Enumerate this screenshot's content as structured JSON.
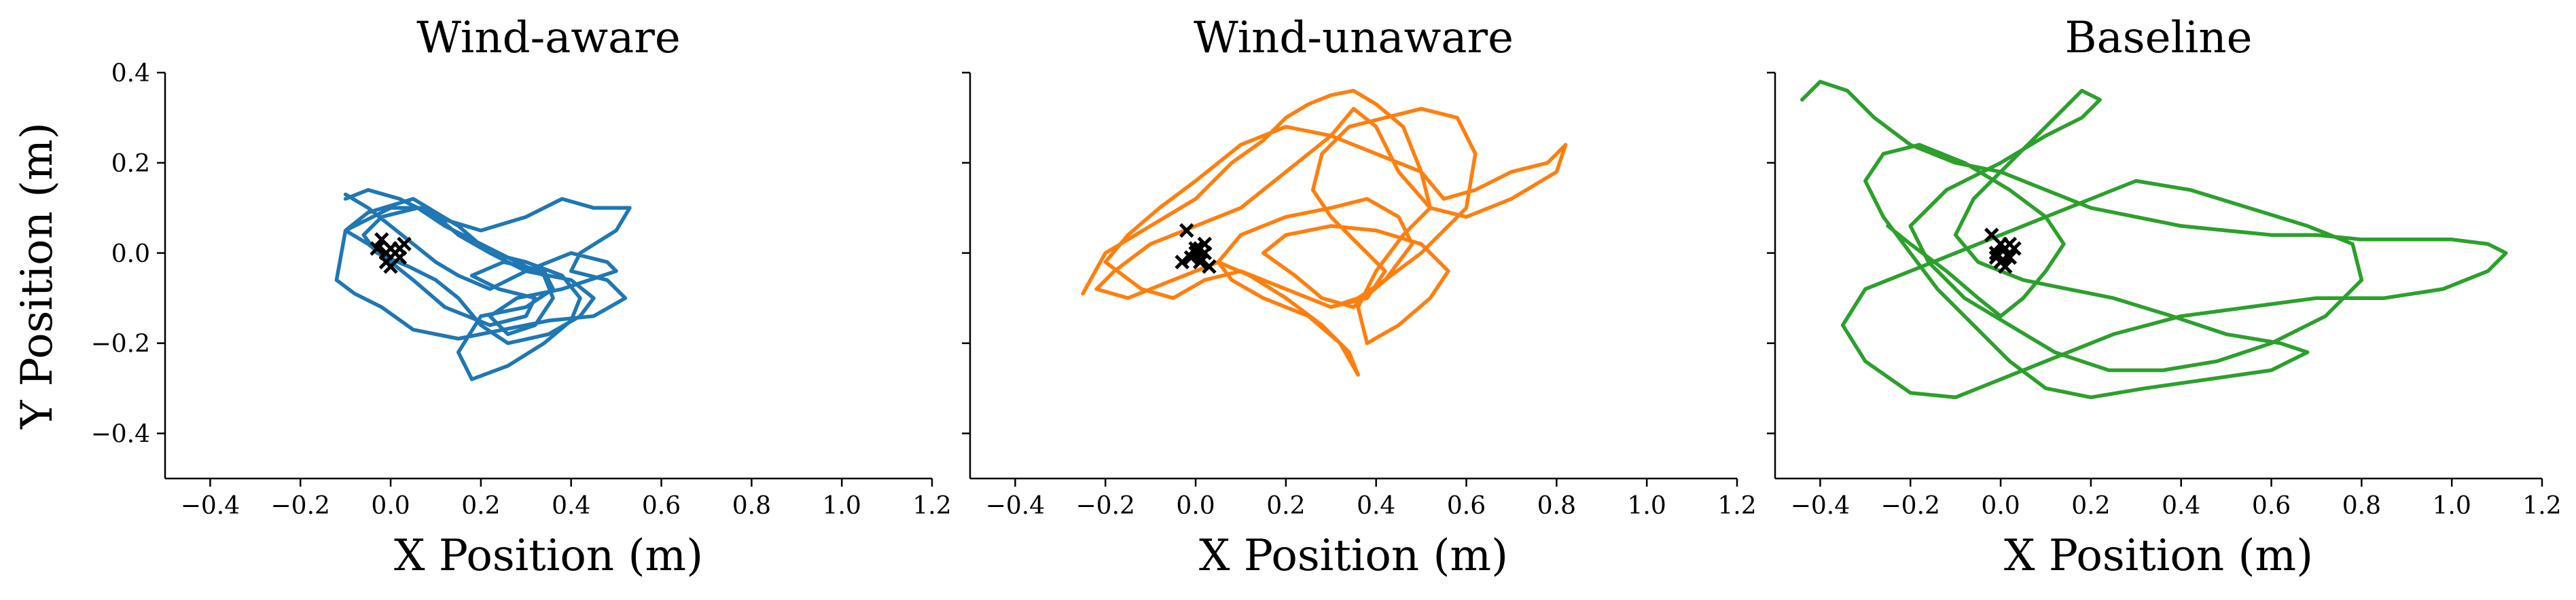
{
  "colors": {
    "wind_aware": "#1f77b4",
    "wind_unaware": "#ff7f0e",
    "baseline": "#2ca02c",
    "marker": "#000000"
  },
  "chart_data": [
    {
      "type": "line",
      "title": "Wind-aware",
      "xlabel": "X Position (m)",
      "ylabel": "Y Position (m)",
      "xlim": [
        -0.5,
        1.2
      ],
      "ylim": [
        -0.5,
        0.4
      ],
      "xticks": [
        -0.4,
        -0.2,
        0.0,
        0.2,
        0.4,
        0.6,
        0.8,
        1.0,
        1.2
      ],
      "xtick_labels": [
        "−0.4",
        "−0.2",
        "0.0",
        "0.2",
        "0.4",
        "0.6",
        "0.8",
        "1.0",
        "1.2"
      ],
      "yticks": [
        -0.4,
        -0.2,
        0.0,
        0.2,
        0.4
      ],
      "ytick_labels": [
        "−0.4",
        "−0.2",
        "0.0",
        "0.2",
        "0.4"
      ],
      "show_ytick_labels": true,
      "grid": false,
      "color": "#1f77b4",
      "series": [
        {
          "x": [
            -0.1,
            -0.05,
            0.02,
            0.1,
            0.2,
            0.3,
            0.38,
            0.45,
            0.53,
            0.5,
            0.42,
            0.4,
            0.48,
            0.52,
            0.45,
            0.35,
            0.25,
            0.15,
            0.05,
            -0.02,
            -0.08,
            -0.12,
            -0.1,
            0.0,
            0.08,
            0.15,
            0.22,
            0.3,
            0.38,
            0.42,
            0.4,
            0.34,
            0.26,
            0.18,
            0.15,
            0.2,
            0.3,
            0.36,
            0.34,
            0.25,
            0.18,
            0.24,
            0.32,
            0.3,
            0.22,
            0.12,
            0.05,
            0.0,
            -0.05,
            -0.1,
            -0.05,
            0.05,
            0.15,
            0.22,
            0.3,
            0.4,
            0.45,
            0.42,
            0.35,
            0.26,
            0.2,
            0.15,
            0.1,
            0.04,
            -0.03,
            -0.06,
            -0.02,
            0.06,
            0.12,
            0.2,
            0.28,
            0.34,
            0.36,
            0.32,
            0.26,
            0.22,
            0.28,
            0.38,
            0.44,
            0.5,
            0.48,
            0.4,
            0.3,
            0.22,
            0.15,
            0.1,
            0.05,
            0.0,
            -0.05,
            -0.1
          ],
          "y": [
            0.12,
            0.14,
            0.12,
            0.08,
            0.05,
            0.08,
            0.12,
            0.1,
            0.1,
            0.05,
            0.0,
            -0.04,
            -0.06,
            -0.1,
            -0.14,
            -0.15,
            -0.17,
            -0.19,
            -0.17,
            -0.12,
            -0.09,
            -0.06,
            0.05,
            0.1,
            0.1,
            0.04,
            0.0,
            -0.02,
            -0.05,
            -0.1,
            -0.15,
            -0.2,
            -0.25,
            -0.28,
            -0.22,
            -0.14,
            -0.12,
            -0.08,
            -0.04,
            -0.02,
            -0.05,
            -0.08,
            -0.1,
            -0.14,
            -0.16,
            -0.12,
            -0.06,
            -0.02,
            0.02,
            0.05,
            0.09,
            0.12,
            0.06,
            0.0,
            -0.04,
            -0.06,
            -0.1,
            -0.14,
            -0.18,
            -0.2,
            -0.16,
            -0.1,
            -0.06,
            -0.03,
            0.0,
            0.04,
            0.08,
            0.1,
            0.06,
            0.02,
            -0.02,
            -0.05,
            -0.1,
            -0.16,
            -0.18,
            -0.14,
            -0.1,
            -0.08,
            -0.06,
            -0.04,
            -0.02,
            0.0,
            -0.04,
            -0.08,
            -0.05,
            -0.02,
            0.02,
            0.06,
            0.1,
            0.13
          ]
        }
      ],
      "markers": {
        "x": [
          -0.02,
          0.0,
          0.02,
          -0.01,
          0.01,
          0.03,
          -0.03,
          0.0,
          0.02,
          -0.01
        ],
        "y": [
          0.03,
          0.01,
          -0.01,
          -0.02,
          0.0,
          0.02,
          0.01,
          -0.03,
          0.01,
          0.0
        ]
      }
    },
    {
      "type": "line",
      "title": "Wind-unaware",
      "xlabel": "X Position (m)",
      "ylabel": "",
      "xlim": [
        -0.5,
        1.2
      ],
      "ylim": [
        -0.5,
        0.4
      ],
      "xticks": [
        -0.4,
        -0.2,
        0.0,
        0.2,
        0.4,
        0.6,
        0.8,
        1.0,
        1.2
      ],
      "xtick_labels": [
        "−0.4",
        "−0.2",
        "0.0",
        "0.2",
        "0.4",
        "0.6",
        "0.8",
        "1.0",
        "1.2"
      ],
      "yticks": [
        -0.4,
        -0.2,
        0.0,
        0.2,
        0.4
      ],
      "ytick_labels": [],
      "show_ytick_labels": false,
      "grid": false,
      "color": "#ff7f0e",
      "series": [
        {
          "x": [
            -0.25,
            -0.2,
            -0.1,
            0.0,
            0.08,
            0.15,
            0.2,
            0.25,
            0.3,
            0.35,
            0.4,
            0.46,
            0.5,
            0.55,
            0.62,
            0.7,
            0.78,
            0.82,
            0.8,
            0.7,
            0.6,
            0.52,
            0.45,
            0.4,
            0.35,
            0.3,
            0.2,
            0.1,
            0.0,
            -0.1,
            -0.18,
            -0.22,
            -0.15,
            -0.05,
            0.05,
            0.12,
            0.2,
            0.28,
            0.34,
            0.36,
            0.32,
            0.25,
            0.15,
            0.08,
            0.05,
            0.1,
            0.2,
            0.3,
            0.38,
            0.45,
            0.48,
            0.42,
            0.35,
            0.28,
            0.22,
            0.15,
            0.2,
            0.3,
            0.4,
            0.5,
            0.56,
            0.52,
            0.45,
            0.38,
            0.36,
            0.4,
            0.46,
            0.52,
            0.5,
            0.4,
            0.3,
            0.2,
            0.1,
            0.0,
            -0.08,
            -0.15,
            -0.2,
            -0.12,
            -0.05,
            0.02,
            0.1,
            0.2,
            0.3,
            0.38,
            0.42,
            0.36,
            0.3,
            0.26,
            0.28,
            0.34,
            0.42,
            0.5,
            0.58,
            0.62,
            0.6,
            0.5,
            0.42,
            0.36,
            0.3
          ],
          "y": [
            -0.09,
            0.0,
            0.06,
            0.12,
            0.2,
            0.25,
            0.3,
            0.33,
            0.35,
            0.36,
            0.33,
            0.28,
            0.18,
            0.12,
            0.14,
            0.18,
            0.2,
            0.24,
            0.18,
            0.12,
            0.08,
            0.1,
            0.18,
            0.28,
            0.32,
            0.26,
            0.18,
            0.1,
            0.06,
            0.02,
            -0.04,
            -0.08,
            -0.1,
            -0.06,
            -0.02,
            -0.05,
            -0.1,
            -0.16,
            -0.22,
            -0.27,
            -0.2,
            -0.14,
            -0.1,
            -0.06,
            -0.02,
            0.04,
            0.08,
            0.1,
            0.12,
            0.08,
            0.02,
            -0.06,
            -0.12,
            -0.1,
            -0.05,
            0.0,
            0.04,
            0.06,
            0.05,
            0.02,
            -0.04,
            -0.1,
            -0.16,
            -0.2,
            -0.12,
            -0.04,
            0.04,
            0.1,
            0.18,
            0.22,
            0.26,
            0.28,
            0.24,
            0.16,
            0.1,
            0.04,
            -0.02,
            -0.08,
            -0.1,
            -0.06,
            -0.04,
            -0.08,
            -0.12,
            -0.1,
            -0.04,
            0.02,
            0.08,
            0.14,
            0.22,
            0.28,
            0.3,
            0.32,
            0.3,
            0.22,
            0.1,
            0.0,
            -0.06,
            -0.1,
            -0.12
          ]
        }
      ],
      "markers": {
        "x": [
          -0.02,
          0.0,
          0.02,
          0.01,
          -0.01,
          0.03,
          0.02,
          0.0,
          -0.03,
          0.01
        ],
        "y": [
          0.05,
          0.01,
          0.0,
          -0.02,
          -0.01,
          -0.03,
          0.02,
          0.0,
          -0.02,
          0.01
        ]
      }
    },
    {
      "type": "line",
      "title": "Baseline",
      "xlabel": "X Position (m)",
      "ylabel": "",
      "xlim": [
        -0.5,
        1.2
      ],
      "ylim": [
        -0.5,
        0.4
      ],
      "xticks": [
        -0.4,
        -0.2,
        0.0,
        0.2,
        0.4,
        0.6,
        0.8,
        1.0,
        1.2
      ],
      "xtick_labels": [
        "−0.4",
        "−0.2",
        "0.0",
        "0.2",
        "0.4",
        "0.6",
        "0.8",
        "1.0",
        "1.2"
      ],
      "yticks": [
        -0.4,
        -0.2,
        0.0,
        0.2,
        0.4
      ],
      "ytick_labels": [],
      "show_ytick_labels": false,
      "grid": false,
      "color": "#2ca02c",
      "series": [
        {
          "x": [
            -0.44,
            -0.4,
            -0.34,
            -0.28,
            -0.2,
            -0.1,
            0.0,
            0.1,
            0.2,
            0.3,
            0.4,
            0.5,
            0.6,
            0.7,
            0.8,
            0.9,
            1.0,
            1.08,
            1.12,
            1.08,
            0.98,
            0.85,
            0.7,
            0.55,
            0.4,
            0.25,
            0.1,
            0.0,
            -0.1,
            -0.2,
            -0.3,
            -0.35,
            -0.3,
            -0.2,
            -0.1,
            0.0,
            0.1,
            0.2,
            0.3,
            0.42,
            0.55,
            0.68,
            0.78,
            0.8,
            0.72,
            0.6,
            0.48,
            0.36,
            0.24,
            0.12,
            0.02,
            -0.08,
            -0.16,
            -0.2,
            -0.12,
            0.0,
            0.1,
            0.18,
            0.22,
            0.18,
            0.1,
            0.02,
            -0.06,
            -0.1,
            -0.05,
            0.05,
            0.15,
            0.25,
            0.38,
            0.5,
            0.62,
            0.68,
            0.6,
            0.46,
            0.32,
            0.2,
            0.1,
            0.02,
            -0.06,
            -0.14,
            -0.2,
            -0.26,
            -0.3,
            -0.26,
            -0.18,
            -0.08,
            0.02,
            0.1,
            0.14,
            0.1,
            0.05,
            0.0,
            -0.05,
            -0.12,
            -0.2,
            -0.25
          ],
          "y": [
            0.34,
            0.38,
            0.36,
            0.3,
            0.24,
            0.2,
            0.18,
            0.14,
            0.1,
            0.08,
            0.06,
            0.05,
            0.04,
            0.04,
            0.03,
            0.03,
            0.03,
            0.02,
            0.0,
            -0.04,
            -0.08,
            -0.1,
            -0.1,
            -0.12,
            -0.14,
            -0.18,
            -0.24,
            -0.28,
            -0.32,
            -0.31,
            -0.24,
            -0.16,
            -0.08,
            -0.04,
            0.0,
            0.04,
            0.08,
            0.12,
            0.16,
            0.14,
            0.1,
            0.06,
            0.02,
            -0.06,
            -0.14,
            -0.2,
            -0.24,
            -0.26,
            -0.26,
            -0.22,
            -0.16,
            -0.1,
            -0.02,
            0.06,
            0.14,
            0.2,
            0.26,
            0.3,
            0.34,
            0.36,
            0.28,
            0.2,
            0.12,
            0.04,
            -0.02,
            -0.06,
            -0.08,
            -0.1,
            -0.14,
            -0.18,
            -0.2,
            -0.22,
            -0.26,
            -0.28,
            -0.3,
            -0.32,
            -0.3,
            -0.24,
            -0.16,
            -0.08,
            0.0,
            0.08,
            0.16,
            0.22,
            0.24,
            0.2,
            0.14,
            0.08,
            0.02,
            -0.04,
            -0.1,
            -0.14,
            -0.1,
            -0.04,
            0.02,
            0.06
          ]
        }
      ],
      "markers": {
        "x": [
          -0.02,
          0.0,
          0.02,
          0.01,
          -0.01,
          0.03,
          0.02,
          0.0,
          -0.01,
          0.01
        ],
        "y": [
          0.04,
          0.02,
          -0.01,
          -0.03,
          0.0,
          0.01,
          0.02,
          -0.02,
          -0.01,
          0.01
        ]
      }
    }
  ]
}
